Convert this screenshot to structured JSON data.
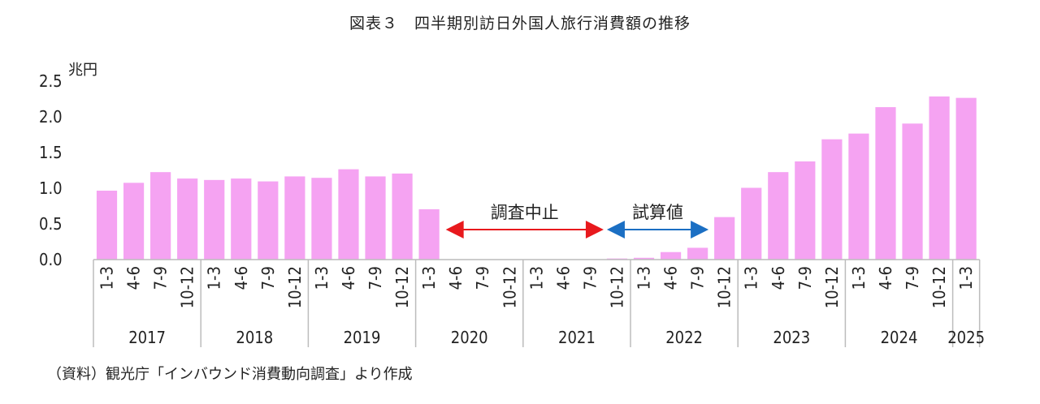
{
  "title": "図表３　四半期別訪日外国人旅行消費額の推移",
  "source": "（資料）観光庁「インバウンド消費動向調査」より作成",
  "colors": {
    "bar": "#f5a3f2",
    "bar_stroke": "#ffffff",
    "arrow_red": "#e8191d",
    "arrow_blue": "#1b6fc3",
    "axis": "#bcbcbc"
  },
  "chart_data": {
    "type": "bar",
    "title": "図表３　四半期別訪日外国人旅行消費額の推移",
    "ylabel": "兆円",
    "ylim": [
      0,
      2.5
    ],
    "yticks": [
      "0.0",
      "0.5",
      "1.0",
      "1.5",
      "2.0",
      "2.5"
    ],
    "grid": false,
    "categories": [
      "1-3",
      "4-6",
      "7-9",
      "10-12",
      "1-3",
      "4-6",
      "7-9",
      "10-12",
      "1-3",
      "4-6",
      "7-9",
      "10-12",
      "1-3",
      "4-6",
      "7-9",
      "10-12",
      "1-3",
      "4-6",
      "7-9",
      "10-12",
      "1-3",
      "4-6",
      "7-9",
      "10-12",
      "1-3",
      "4-6",
      "7-9",
      "10-12",
      "1-3",
      "4-6",
      "7-9",
      "10-12",
      "1-3"
    ],
    "years": [
      {
        "label": "2017",
        "start": 0,
        "count": 4
      },
      {
        "label": "2018",
        "start": 4,
        "count": 4
      },
      {
        "label": "2019",
        "start": 8,
        "count": 4
      },
      {
        "label": "2020",
        "start": 12,
        "count": 4
      },
      {
        "label": "2021",
        "start": 16,
        "count": 4
      },
      {
        "label": "2022",
        "start": 20,
        "count": 4
      },
      {
        "label": "2023",
        "start": 24,
        "count": 4
      },
      {
        "label": "2024",
        "start": 28,
        "count": 4
      },
      {
        "label": "2025",
        "start": 32,
        "count": 1
      }
    ],
    "series": [
      {
        "values": [
          0.97,
          1.08,
          1.23,
          1.14,
          1.12,
          1.14,
          1.1,
          1.17,
          1.15,
          1.27,
          1.17,
          1.21,
          0.71,
          0,
          0,
          0,
          0,
          0,
          0,
          0.02,
          0.03,
          0.11,
          0.17,
          0.6,
          1.01,
          1.23,
          1.38,
          1.69,
          1.77,
          2.14,
          1.91,
          2.29,
          2.27
        ]
      }
    ],
    "annotations": [
      {
        "text": "調査中止",
        "from_index": 13,
        "to_index": 19,
        "color": "red"
      },
      {
        "text": "試算値",
        "from_index": 19,
        "to_index": 22,
        "color": "blue"
      }
    ]
  }
}
